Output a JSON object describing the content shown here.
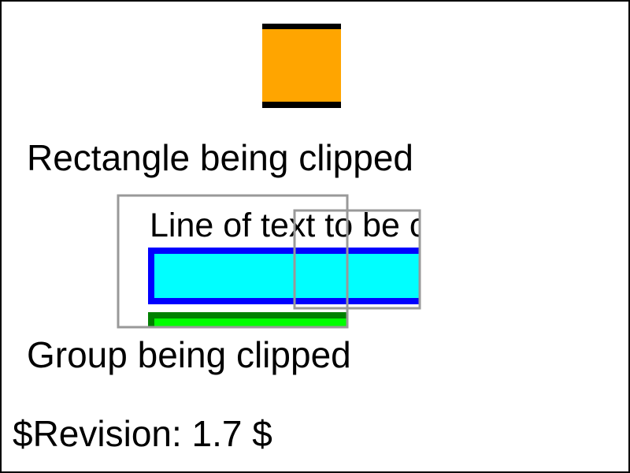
{
  "labels": {
    "rect_caption": "Rectangle being clipped",
    "clipped_text": "Line of text to be clipped",
    "group_caption": "Group being clipped",
    "revision": "$Revision: 1.7 $"
  },
  "colors": {
    "frame": "#000000",
    "orange_fill": "#ffa500",
    "clip_bar": "#000000",
    "clip_outline": "#999999",
    "cyan_fill": "#00ffff",
    "blue_stroke": "#0000ff",
    "green_fill": "#00ff00",
    "darkgreen_stroke": "#008000"
  }
}
